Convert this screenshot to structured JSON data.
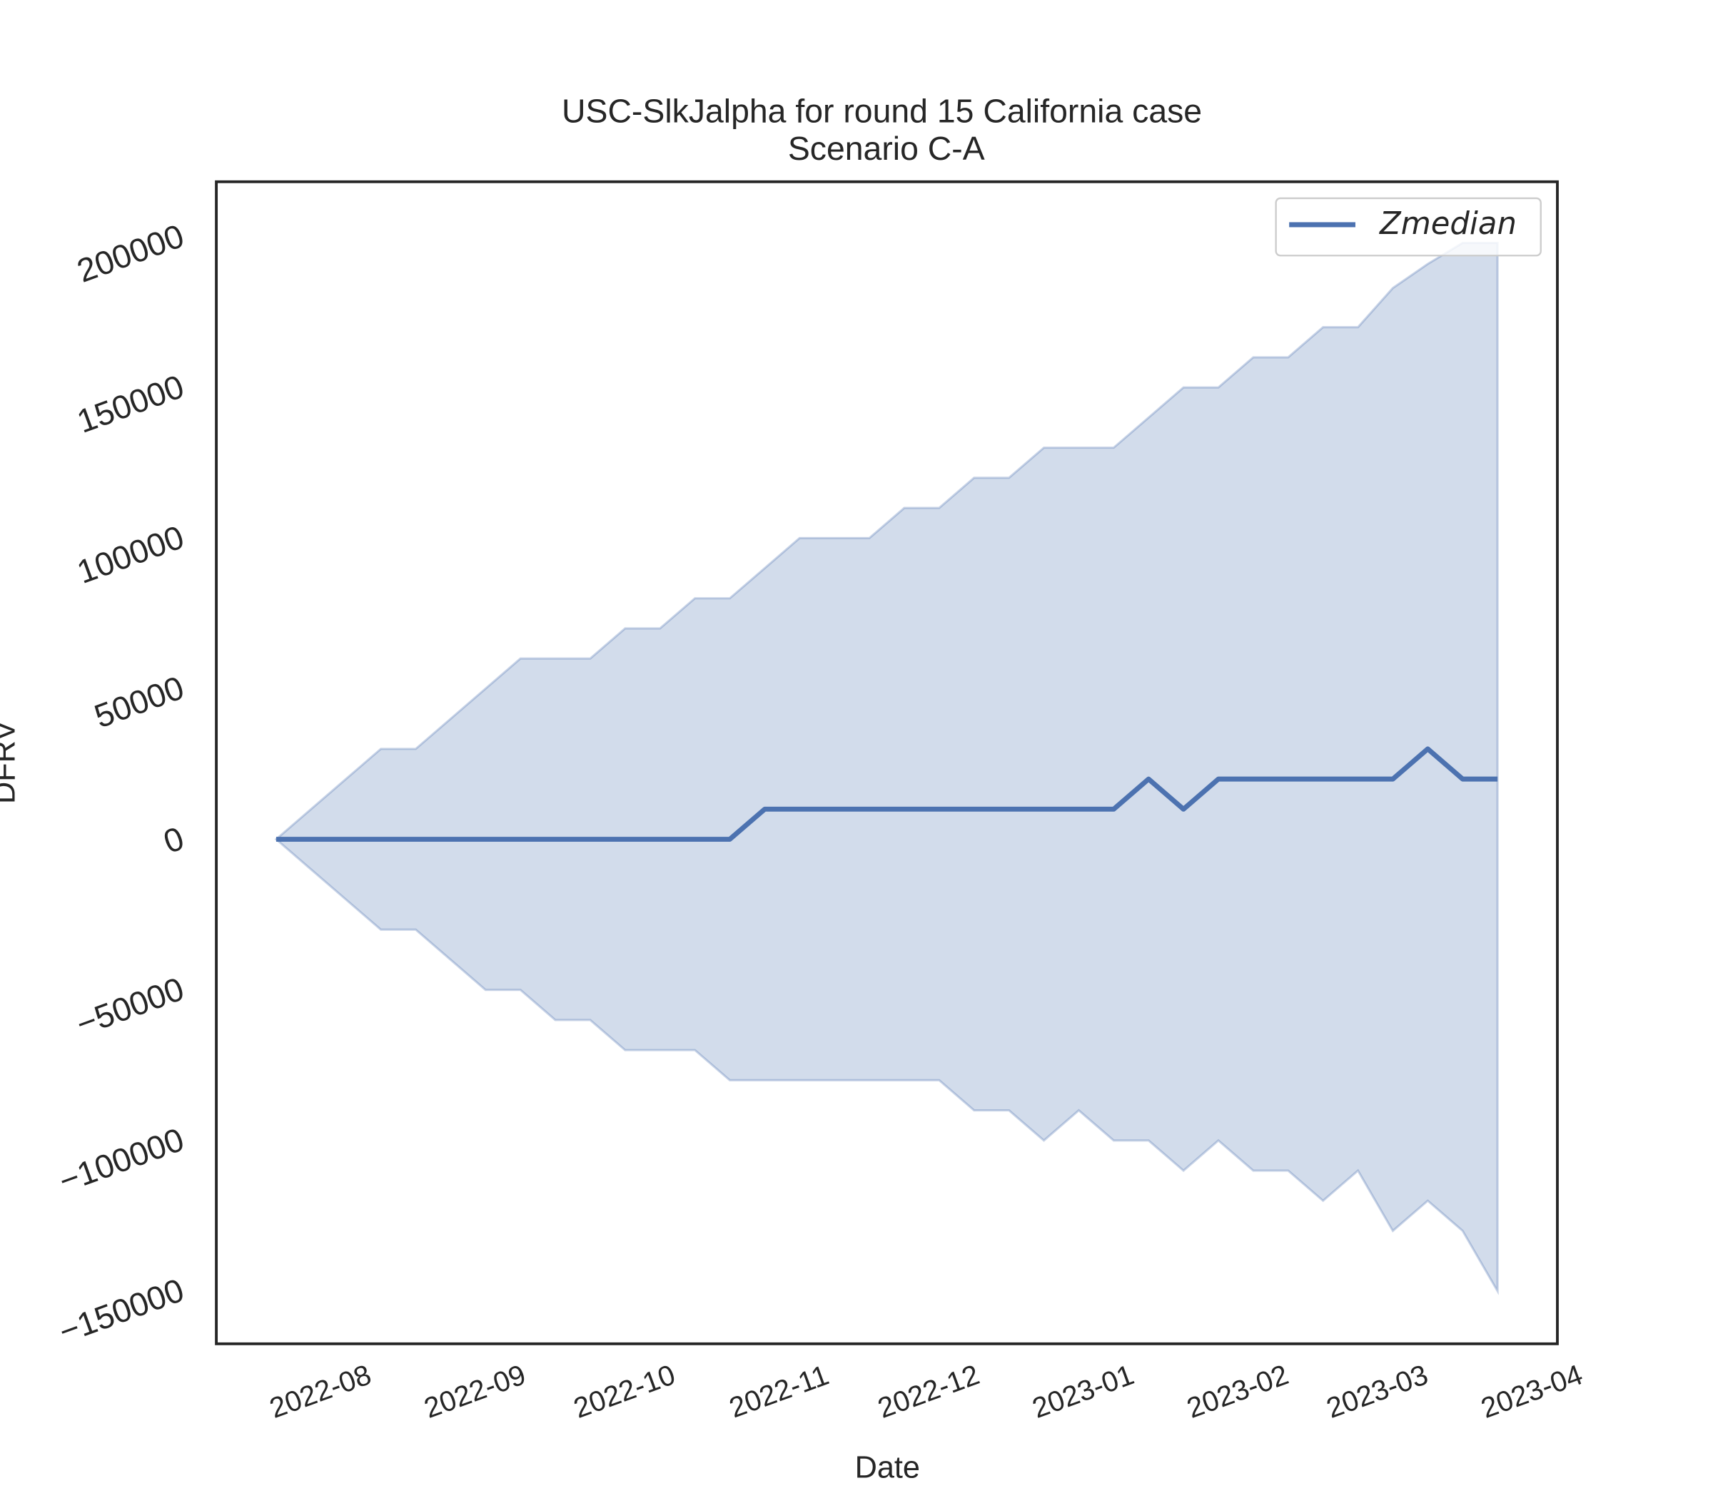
{
  "chart_data": {
    "type": "line",
    "title": "USC-SlkJalpha for round 15 California case",
    "subtitle": "Scenario C-A",
    "xlabel": "Date",
    "ylabel": "DFRV",
    "x": [
      "2022-07-23",
      "2022-07-30",
      "2022-08-06",
      "2022-08-13",
      "2022-08-20",
      "2022-08-27",
      "2022-09-03",
      "2022-09-10",
      "2022-09-17",
      "2022-09-24",
      "2022-10-01",
      "2022-10-08",
      "2022-10-15",
      "2022-10-22",
      "2022-10-29",
      "2022-11-05",
      "2022-11-12",
      "2022-11-19",
      "2022-11-26",
      "2022-12-03",
      "2022-12-10",
      "2022-12-17",
      "2022-12-24",
      "2022-12-31",
      "2023-01-07",
      "2023-01-14",
      "2023-01-21",
      "2023-01-28",
      "2023-02-04",
      "2023-02-11",
      "2023-02-18",
      "2023-02-25",
      "2023-03-04",
      "2023-03-11",
      "2023-03-18",
      "2023-03-25"
    ],
    "series": [
      {
        "name": "Zmedian",
        "color": "#4c72b0",
        "values": [
          0,
          0,
          0,
          0,
          0,
          0,
          0,
          0,
          0,
          0,
          0,
          0,
          0,
          0,
          10000,
          10000,
          10000,
          10000,
          10000,
          10000,
          10000,
          10000,
          10000,
          10000,
          10000,
          20000,
          10000,
          20000,
          20000,
          20000,
          20000,
          20000,
          20000,
          30000,
          20000,
          20000
        ]
      }
    ],
    "band": {
      "color": "#4c72b0",
      "opacity": 0.25,
      "upper": [
        0,
        10000,
        20000,
        30000,
        30000,
        40000,
        50000,
        60000,
        60000,
        60000,
        70000,
        70000,
        80000,
        80000,
        90000,
        100000,
        100000,
        100000,
        110000,
        110000,
        120000,
        120000,
        130000,
        130000,
        130000,
        140000,
        150000,
        150000,
        160000,
        160000,
        170000,
        170000,
        183000,
        191000,
        198000,
        198000
      ],
      "lower": [
        0,
        -10000,
        -20000,
        -30000,
        -30000,
        -40000,
        -50000,
        -50000,
        -60000,
        -60000,
        -70000,
        -70000,
        -70000,
        -80000,
        -80000,
        -80000,
        -80000,
        -80000,
        -80000,
        -80000,
        -90000,
        -90000,
        -100000,
        -90000,
        -100000,
        -100000,
        -110000,
        -100000,
        -110000,
        -110000,
        -120000,
        -110000,
        -130000,
        -120000,
        -130000,
        -150000
      ]
    },
    "xlim": [
      "2022-07-11",
      "2023-04-06"
    ],
    "xticks": [
      {
        "value": "2022-08-01",
        "label": "2022-08"
      },
      {
        "value": "2022-09-01",
        "label": "2022-09"
      },
      {
        "value": "2022-10-01",
        "label": "2022-10"
      },
      {
        "value": "2022-11-01",
        "label": "2022-11"
      },
      {
        "value": "2022-12-01",
        "label": "2022-12"
      },
      {
        "value": "2023-01-01",
        "label": "2023-01"
      },
      {
        "value": "2023-02-01",
        "label": "2023-02"
      },
      {
        "value": "2023-03-01",
        "label": "2023-03"
      },
      {
        "value": "2023-04-01",
        "label": "2023-04"
      }
    ],
    "ylim": [
      -167500,
      218300
    ],
    "yticks": [
      {
        "value": -150000,
        "label": "−150000"
      },
      {
        "value": -100000,
        "label": "−100000"
      },
      {
        "value": -50000,
        "label": "−50000"
      },
      0,
      50000,
      100000,
      150000,
      200000
    ],
    "grid": false,
    "legend": "upper right"
  }
}
